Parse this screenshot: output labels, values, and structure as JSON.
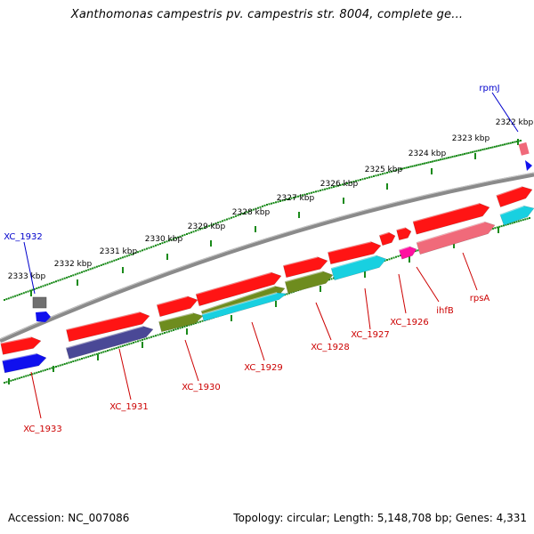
{
  "title": "Xanthomonas campestris pv. campestris str. 8004, complete ge...",
  "footer": {
    "accession_label": "Accession:",
    "accession": "NC_007086",
    "topology_label": "Topology:",
    "topology": "circular;",
    "length_label": "Length:",
    "length": "5,148,708 bp;",
    "genes_label": "Genes:",
    "genes": "4,331"
  },
  "colors": {
    "backbone": "#808080",
    "tick": "#1a8a1a",
    "gene_label": "#cc0000",
    "rna_label": "#0000cc",
    "red": "#ff1414",
    "blue": "#1010ee",
    "navy": "#4a4896",
    "olive": "#6e8c1e",
    "cyan": "#18d0e0",
    "pink": "#f06a7a",
    "magenta": "#ff10a0",
    "gray": "#707070"
  },
  "scale_labels": [
    "2333 kbp",
    "2332 kbp",
    "2331 kbp",
    "2330 kbp",
    "2329 kbp",
    "2328 kbp",
    "2327 kbp",
    "2326 kbp",
    "2325 kbp",
    "2324 kbp",
    "2323 kbp",
    "2322 kbp"
  ],
  "gene_labels": [
    "XC_1933",
    "XC_1931",
    "XC_1930",
    "XC_1929",
    "XC_1928",
    "XC_1927",
    "XC_1926",
    "ihfB",
    "rpsA"
  ],
  "rna_labels": [
    "XC_1932",
    "rpmJ"
  ]
}
